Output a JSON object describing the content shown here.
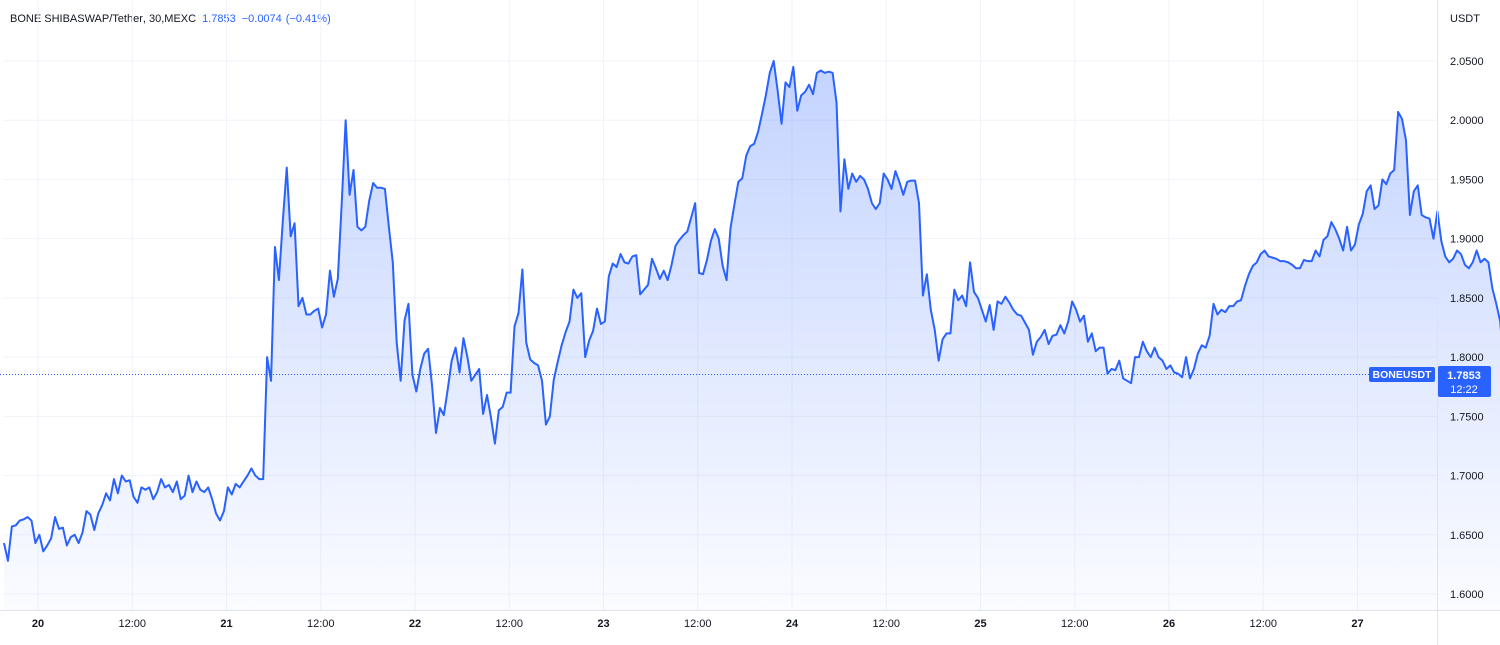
{
  "header": {
    "symbol": "BONE SHIBASWAP",
    "separator1": " / ",
    "quote": "Tether",
    "interval": ", 30, ",
    "exchange": "MEXC",
    "last_price": "1.7853",
    "change": "−0.0074",
    "change_pct": "(−0.41%)"
  },
  "unit": "USDT",
  "price_tag": {
    "symbol": "BONEUSDT",
    "price": "1.7853",
    "countdown": "12:22"
  },
  "colors": {
    "line": "#2962ff",
    "fill_top": "rgba(41,98,255,0.28)",
    "fill_bottom": "rgba(41,98,255,0.02)",
    "grid": "#f0f3fa",
    "axis_text": "#131722"
  },
  "chart_data": {
    "type": "area",
    "ylim": [
      1.58,
      2.085
    ],
    "yticks": [
      "2.0500",
      "2.0000",
      "1.9500",
      "1.9000",
      "1.8500",
      "1.8000",
      "1.7500",
      "1.7000",
      "1.6500",
      "1.6000"
    ],
    "xticks": [
      "20",
      "12:00",
      "21",
      "12:00",
      "22",
      "12:00",
      "23",
      "12:00",
      "24",
      "12:00",
      "25",
      "12:00",
      "26",
      "12:00",
      "27"
    ],
    "last_value": 1.7853,
    "x_start": "19 00:00",
    "bar_minutes": 30,
    "values": [
      1.643,
      1.628,
      1.657,
      1.658,
      1.662,
      1.663,
      1.665,
      1.662,
      1.643,
      1.65,
      1.636,
      1.641,
      1.647,
      1.665,
      1.655,
      1.656,
      1.641,
      1.648,
      1.65,
      1.643,
      1.652,
      1.67,
      1.667,
      1.654,
      1.668,
      1.675,
      1.685,
      1.679,
      1.697,
      1.685,
      1.7,
      1.695,
      1.696,
      1.682,
      1.677,
      1.69,
      1.688,
      1.69,
      1.68,
      1.686,
      1.697,
      1.69,
      1.692,
      1.686,
      1.695,
      1.68,
      1.683,
      1.7,
      1.686,
      1.695,
      1.688,
      1.686,
      1.69,
      1.68,
      1.668,
      1.662,
      1.67,
      1.69,
      1.684,
      1.693,
      1.69,
      1.695,
      1.7,
      1.706,
      1.7,
      1.697,
      1.697,
      1.8,
      1.78,
      1.893,
      1.865,
      1.915,
      1.96,
      1.902,
      1.913,
      1.843,
      1.85,
      1.836,
      1.836,
      1.839,
      1.841,
      1.825,
      1.836,
      1.873,
      1.851,
      1.866,
      1.93,
      2.0,
      1.937,
      1.958,
      1.91,
      1.907,
      1.91,
      1.932,
      1.947,
      1.943,
      1.943,
      1.942,
      1.91,
      1.88,
      1.812,
      1.78,
      1.831,
      1.845,
      1.785,
      1.771,
      1.79,
      1.803,
      1.807,
      1.776,
      1.736,
      1.757,
      1.751,
      1.773,
      1.797,
      1.808,
      1.787,
      1.816,
      1.8,
      1.78,
      1.785,
      1.79,
      1.752,
      1.768,
      1.749,
      1.727,
      1.755,
      1.758,
      1.77,
      1.77,
      1.826,
      1.837,
      1.874,
      1.812,
      1.798,
      1.795,
      1.793,
      1.78,
      1.743,
      1.75,
      1.781,
      1.796,
      1.81,
      1.821,
      1.83,
      1.857,
      1.85,
      1.854,
      1.8,
      1.814,
      1.822,
      1.841,
      1.828,
      1.83,
      1.868,
      1.879,
      1.876,
      1.887,
      1.88,
      1.879,
      1.885,
      1.886,
      1.853,
      1.857,
      1.861,
      1.883,
      1.875,
      1.866,
      1.873,
      1.865,
      1.878,
      1.894,
      1.899,
      1.903,
      1.906,
      1.918,
      1.93,
      1.871,
      1.87,
      1.882,
      1.898,
      1.908,
      1.9,
      1.877,
      1.865,
      1.909,
      1.929,
      1.948,
      1.951,
      1.97,
      1.978,
      1.98,
      1.99,
      2.005,
      2.021,
      2.04,
      2.05,
      2.025,
      1.997,
      2.032,
      2.028,
      2.045,
      2.008,
      2.021,
      2.024,
      2.03,
      2.022,
      2.04,
      2.042,
      2.04,
      2.041,
      2.04,
      2.015,
      1.923,
      1.967,
      1.942,
      1.955,
      1.948,
      1.953,
      1.95,
      1.942,
      1.93,
      1.925,
      1.93,
      1.955,
      1.95,
      1.942,
      1.957,
      1.948,
      1.937,
      1.948,
      1.949,
      1.949,
      1.93,
      1.852,
      1.87,
      1.84,
      1.823,
      1.797,
      1.815,
      1.82,
      1.82,
      1.857,
      1.848,
      1.852,
      1.843,
      1.88,
      1.855,
      1.85,
      1.84,
      1.83,
      1.844,
      1.823,
      1.847,
      1.845,
      1.851,
      1.846,
      1.84,
      1.836,
      1.835,
      1.829,
      1.823,
      1.802,
      1.813,
      1.817,
      1.823,
      1.811,
      1.818,
      1.819,
      1.827,
      1.82,
      1.83,
      1.847,
      1.84,
      1.83,
      1.835,
      1.813,
      1.82,
      1.805,
      1.808,
      1.808,
      1.786,
      1.79,
      1.789,
      1.797,
      1.782,
      1.78,
      1.778,
      1.8,
      1.8,
      1.813,
      1.805,
      1.8,
      1.808,
      1.8,
      1.797,
      1.79,
      1.793,
      1.787,
      1.786,
      1.783,
      1.8,
      1.782,
      1.79,
      1.803,
      1.81,
      1.808,
      1.818,
      1.845,
      1.836,
      1.84,
      1.838,
      1.843,
      1.843,
      1.847,
      1.848,
      1.86,
      1.87,
      1.877,
      1.88,
      1.887,
      1.89,
      1.885,
      1.884,
      1.883,
      1.881,
      1.881,
      1.88,
      1.878,
      1.875,
      1.875,
      1.882,
      1.881,
      1.881,
      1.89,
      1.885,
      1.899,
      1.902,
      1.914,
      1.908,
      1.9,
      1.89,
      1.91,
      1.89,
      1.895,
      1.912,
      1.921,
      1.94,
      1.945,
      1.925,
      1.928,
      1.95,
      1.946,
      1.955,
      1.958,
      2.007,
      2.001,
      1.983,
      1.92,
      1.94,
      1.945,
      1.92,
      1.918,
      1.917,
      1.9,
      1.923,
      1.898,
      1.885,
      1.88,
      1.883,
      1.89,
      1.887,
      1.878,
      1.875,
      1.88,
      1.89,
      1.88,
      1.883,
      1.88,
      1.858,
      1.845,
      1.83,
      1.785
    ]
  }
}
